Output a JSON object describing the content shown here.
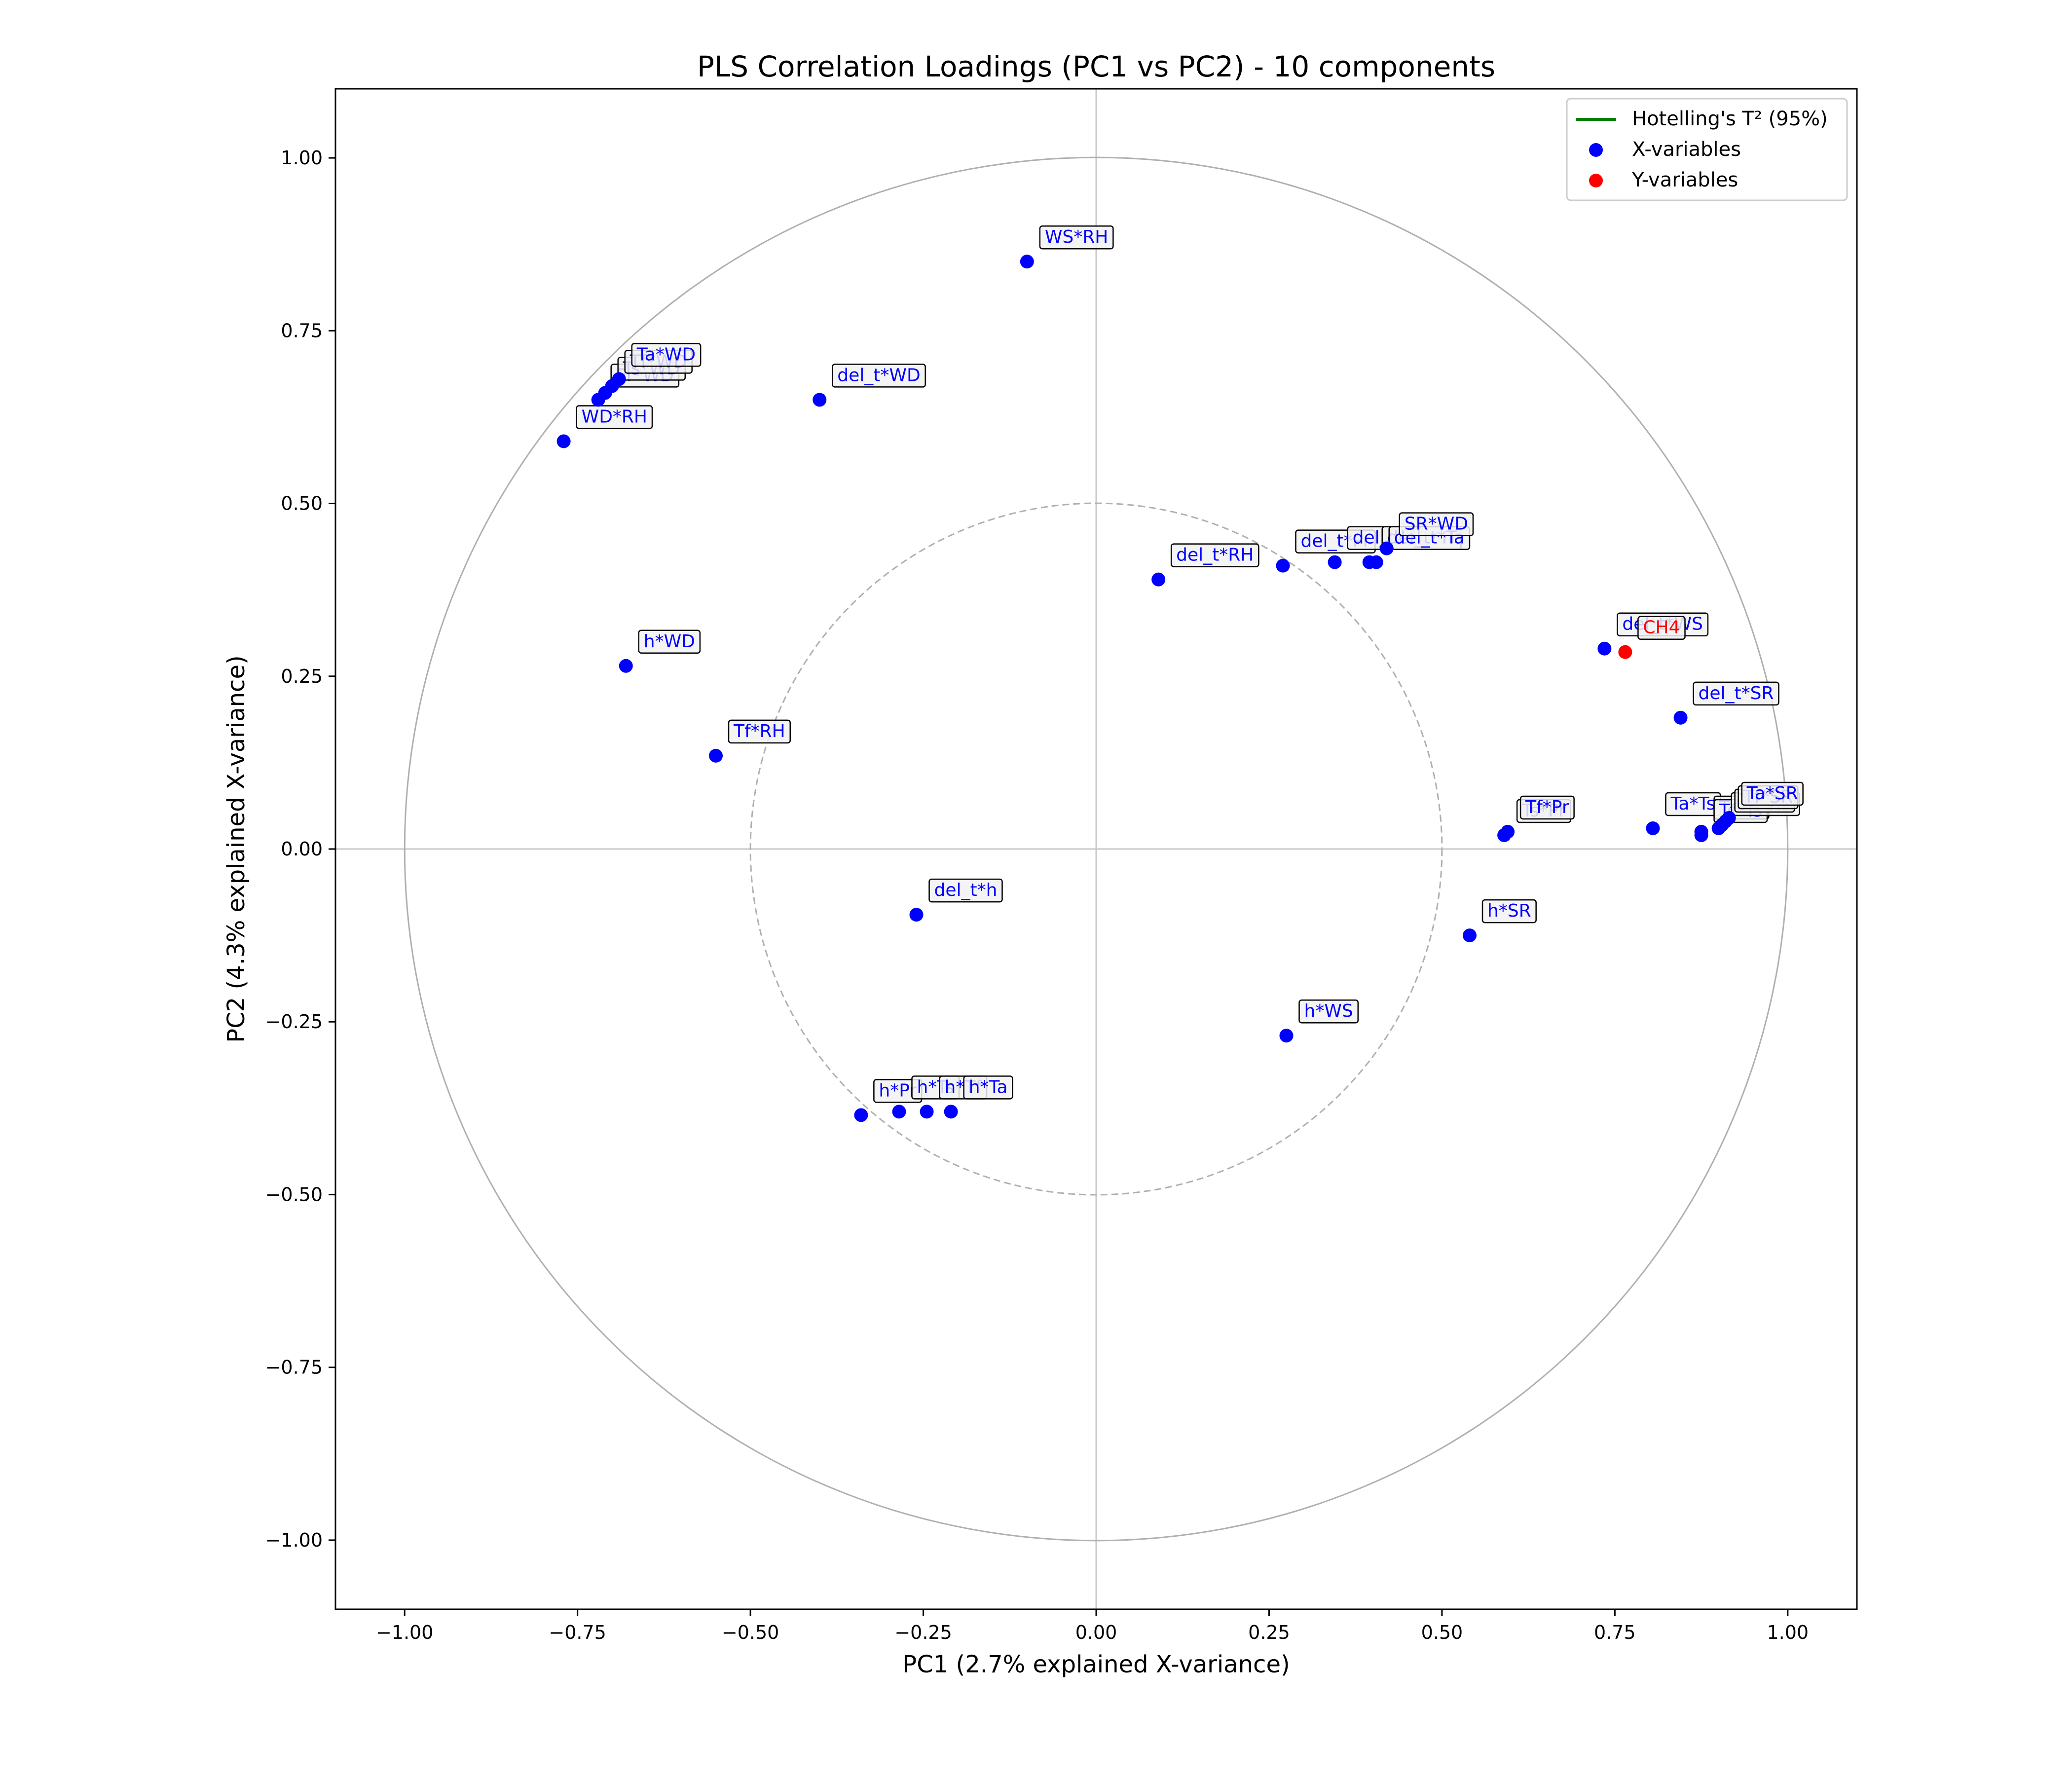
{
  "chart_data": {
    "type": "scatter",
    "title": "PLS Correlation Loadings (PC1 vs PC2) - 10 components",
    "xlabel": "PC1 (2.7% explained X-variance)",
    "ylabel": "PC2 (4.3% explained X-variance)",
    "xlim": [
      -1.1,
      1.1
    ],
    "ylim": [
      -1.1,
      1.1
    ],
    "xticks": [
      -1.0,
      -0.75,
      -0.5,
      -0.25,
      0.0,
      0.25,
      0.5,
      0.75,
      1.0
    ],
    "yticks": [
      -1.0,
      -0.75,
      -0.5,
      -0.25,
      0.0,
      0.25,
      0.5,
      0.75,
      1.0
    ],
    "xtick_labels": [
      "−1.00",
      "−0.75",
      "−0.50",
      "−0.25",
      "0.00",
      "0.25",
      "0.50",
      "0.75",
      "1.00"
    ],
    "ytick_labels": [
      "−1.00",
      "−0.75",
      "−0.50",
      "−0.25",
      "0.00",
      "0.25",
      "0.50",
      "0.75",
      "1.00"
    ],
    "grid": false,
    "circles": [
      {
        "radius": 1.0,
        "style": "solid",
        "color": "#b0b0b0"
      },
      {
        "radius": 0.5,
        "style": "dashed",
        "color": "#b0b0b0"
      }
    ],
    "legend": {
      "placement": "top-right",
      "entries": [
        {
          "label": "Hotelling's T² (95%)",
          "marker": "line",
          "color": "#008000"
        },
        {
          "label": "X-variables",
          "marker": "dot",
          "color": "#0000ff"
        },
        {
          "label": "Y-variables",
          "marker": "dot",
          "color": "#ff0000"
        }
      ]
    },
    "colors": {
      "x_variables": "#0000ff",
      "y_variables": "#ff0000",
      "hotelling": "#008000"
    },
    "series": [
      {
        "name": "X-variables",
        "points": [
          {
            "label": "WS*RH",
            "x": -0.1,
            "y": 0.85
          },
          {
            "label": "del_t*WD",
            "x": -0.4,
            "y": 0.65
          },
          {
            "label": "WD*RH",
            "x": -0.77,
            "y": 0.59
          },
          {
            "label": "Pr*WD",
            "x": -0.72,
            "y": 0.65
          },
          {
            "label": "Ts*WD",
            "x": -0.71,
            "y": 0.66
          },
          {
            "label": "Tf*WD",
            "x": -0.7,
            "y": 0.67
          },
          {
            "label": "Ta*WD",
            "x": -0.69,
            "y": 0.68
          },
          {
            "label": "h*WD",
            "x": -0.68,
            "y": 0.265
          },
          {
            "label": "Tf*RH",
            "x": -0.55,
            "y": 0.135
          },
          {
            "label": "del_t*RH",
            "x": 0.09,
            "y": 0.39
          },
          {
            "label": "del_t*Pr",
            "x": 0.27,
            "y": 0.41
          },
          {
            "label": "del_t*Ts",
            "x": 0.345,
            "y": 0.415
          },
          {
            "label": "del_t*Tf",
            "x": 0.395,
            "y": 0.415
          },
          {
            "label": "del_t*Ta",
            "x": 0.405,
            "y": 0.415
          },
          {
            "label": "SR*WD",
            "x": 0.42,
            "y": 0.435
          },
          {
            "label": "del_t*WS",
            "x": 0.735,
            "y": 0.29
          },
          {
            "label": "del_t*SR",
            "x": 0.845,
            "y": 0.19
          },
          {
            "label": "Ts*Pr",
            "x": 0.59,
            "y": 0.02
          },
          {
            "label": "Tf*Pr",
            "x": 0.595,
            "y": 0.025
          },
          {
            "label": "Ta*Ts",
            "x": 0.805,
            "y": 0.03
          },
          {
            "label": "Ta*Tf",
            "x": 0.875,
            "y": 0.025
          },
          {
            "label": "Tf*Ts",
            "x": 0.875,
            "y": 0.02
          },
          {
            "label": "SR*RH",
            "x": 0.9,
            "y": 0.03
          },
          {
            "label": "Ts*SR",
            "x": 0.905,
            "y": 0.035
          },
          {
            "label": "Tf*SR",
            "x": 0.91,
            "y": 0.04
          },
          {
            "label": "Ta*SR",
            "x": 0.915,
            "y": 0.045
          },
          {
            "label": "h*SR",
            "x": 0.54,
            "y": -0.125
          },
          {
            "label": "h*WS",
            "x": 0.275,
            "y": -0.27
          },
          {
            "label": "del_t*h",
            "x": -0.26,
            "y": -0.095
          },
          {
            "label": "h*Pr",
            "x": -0.34,
            "y": -0.385
          },
          {
            "label": "h*Ts",
            "x": -0.285,
            "y": -0.38
          },
          {
            "label": "h*Tf",
            "x": -0.245,
            "y": -0.38
          },
          {
            "label": "h*Ta",
            "x": -0.21,
            "y": -0.38
          }
        ]
      },
      {
        "name": "Y-variables",
        "points": [
          {
            "label": "CH4",
            "x": 0.765,
            "y": 0.285
          }
        ]
      }
    ]
  }
}
